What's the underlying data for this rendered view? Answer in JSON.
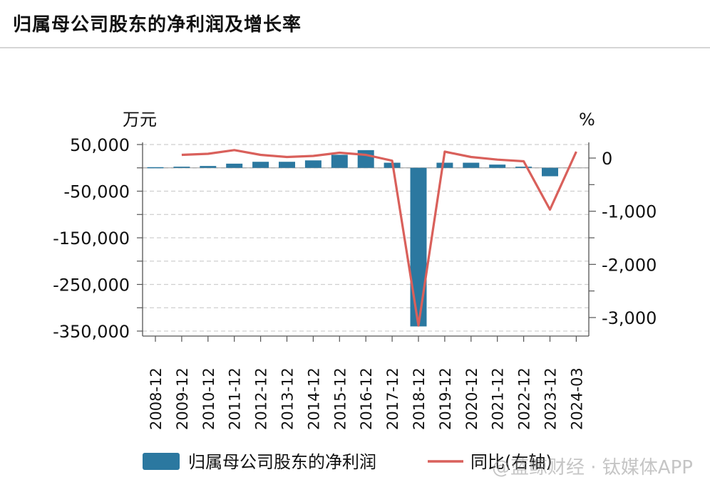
{
  "title": "归属母公司股东的净利润及增长率",
  "watermark": "@蓝鲸财经 · 钛媒体APP",
  "colors": {
    "bar": "#2b78a0",
    "line": "#d9605b",
    "grid": "#cfcfcf",
    "axis": "#555555"
  },
  "chart_data": {
    "type": "bar",
    "categories": [
      "2008-12",
      "2009-12",
      "2010-12",
      "2011-12",
      "2012-12",
      "2013-12",
      "2014-12",
      "2015-12",
      "2016-12",
      "2017-12",
      "2018-12",
      "2019-12",
      "2020-12",
      "2021-12",
      "2022-12",
      "2023-12",
      "2024-03"
    ],
    "y_left": {
      "unit": "万元",
      "range": [
        -350000,
        50000
      ],
      "ticks": [
        50000,
        -50000,
        -150000,
        -250000,
        -350000
      ],
      "tick_labels": [
        "50,000",
        "-50,000",
        "-150,000",
        "-250,000",
        "-350,000"
      ]
    },
    "y_right": {
      "unit": "%",
      "range": [
        -3000,
        0
      ],
      "ticks": [
        0,
        -1000,
        -2000,
        -3000
      ],
      "tick_labels": [
        "0",
        "-1,000",
        "-2,000",
        "-3,000"
      ]
    },
    "series": [
      {
        "name": "归属母公司股东的净利润",
        "type": "bar",
        "axis": "left",
        "values": [
          1500,
          2500,
          4000,
          9000,
          13000,
          13000,
          16000,
          28000,
          38000,
          11000,
          -340000,
          11000,
          11000,
          7000,
          2500,
          -18000,
          null
        ]
      },
      {
        "name": "同比(右轴)",
        "type": "line",
        "axis": "right",
        "values": [
          null,
          60,
          80,
          150,
          60,
          20,
          40,
          100,
          60,
          -50,
          -3150,
          120,
          20,
          -30,
          -60,
          -970,
          120
        ]
      }
    ],
    "grid": true,
    "legend_position": "bottom"
  }
}
